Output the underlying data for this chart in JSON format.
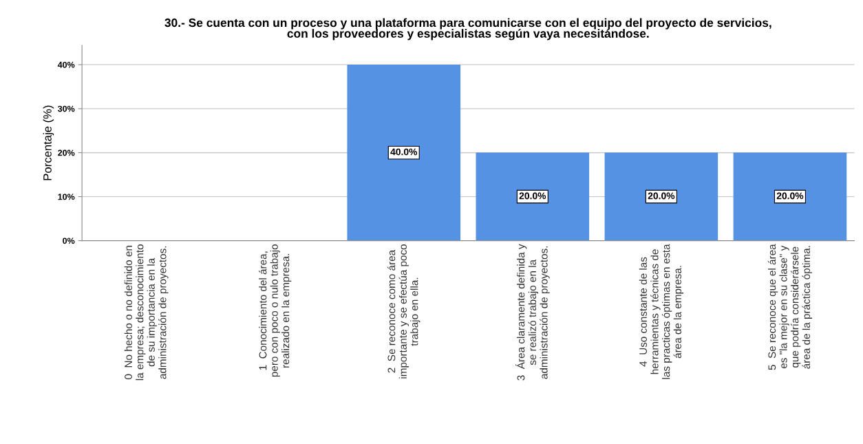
{
  "chart_data": {
    "type": "bar",
    "title": "30.- Se cuenta con un proceso y una plataforma para comunicarse con el equipo del proyecto de servicios,\ncon los proveedores y especialistas según vaya necesitándose.",
    "ylabel": "Porcentaje (%)",
    "categories": [
      "0  No hecho o no definido en\nla empresa; desconocimiento\nde su importancia en la\nadministración de proyectos.",
      "1  Conocimiento del área,\npero con poco o nulo trabajo\nrealizado en la empresa.",
      "2  Se reconoce como área\nimportante y se efectúa poco\ntrabajo en ella.",
      "3  Área claramente definida y\nse realizó trabajo en la\nadministración de proyectos.",
      "4  Uso constante de las\nherramientas y técnicas de\nlas practicas óptimas en esta\nárea de la empresa.",
      "5  Se reconoce que el área\nes \"la mejor en su clase\" y\nque podría considerársele\nárea de la práctica óptima."
    ],
    "values": [
      0,
      0,
      40,
      20,
      20,
      20
    ],
    "value_labels": [
      null,
      null,
      "40.0%",
      "20.0%",
      "20.0%",
      "20.0%"
    ],
    "color": "#5592e3",
    "ylim": [
      0,
      44.4
    ],
    "yticks": [
      {
        "value": 0,
        "label": "0%"
      },
      {
        "value": 10,
        "label": "10%"
      },
      {
        "value": 20,
        "label": "20%"
      },
      {
        "value": 30,
        "label": "30%"
      },
      {
        "value": 40,
        "label": "40%"
      }
    ],
    "grid": "y"
  }
}
